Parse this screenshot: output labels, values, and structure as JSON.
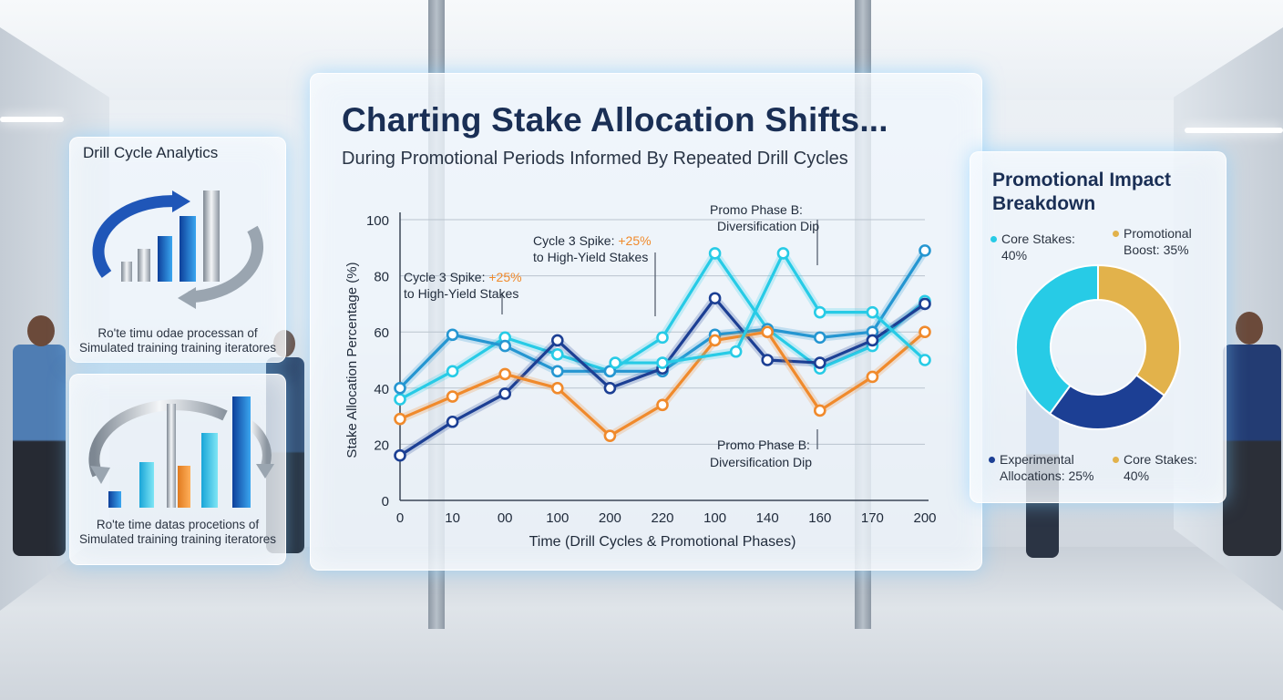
{
  "colors": {
    "dark_blue": "#1c3f94",
    "mid_blue": "#2596d1",
    "cyan": "#27cbe6",
    "orange": "#f08a2c",
    "gold": "#e2b24b"
  },
  "left_top_panel": {
    "title": "Drill Cycle Analytics",
    "caption_1": "Ro'te timu odae processan of",
    "caption_2": "Simulated training training iteratores",
    "icon": "cycle-bar-chart-icon"
  },
  "left_bottom_panel": {
    "caption_1": "Ro'te time datas procetions of",
    "caption_2": "Simulated training training iteratores",
    "icon": "cycle-bar-chart-icon"
  },
  "chart_data": [
    {
      "type": "line",
      "title": "Charting Stake Allocation Shifts...",
      "subtitle": "During Promotional Periods Informed By Repeated Drill Cycles",
      "xlabel": "Time (Drill Cycles & Promotional Phases)",
      "ylabel": "Stake Allocation Percentage (%)",
      "categories": [
        "0",
        "10",
        "00",
        "100",
        "200",
        "220",
        "100",
        "140",
        "160",
        "170",
        "200"
      ],
      "ylim": [
        0,
        100
      ],
      "yticks": [
        "0",
        "20",
        "40",
        "60",
        "80",
        "100"
      ],
      "grid": true,
      "series": [
        {
          "color": "#27cbe6",
          "points": [
            [
              0,
              36
            ],
            [
              1,
              46
            ],
            [
              2,
              58
            ],
            [
              3,
              52
            ],
            [
              4,
              46
            ],
            [
              5,
              58
            ],
            [
              6,
              88
            ],
            [
              7,
              61
            ],
            [
              8,
              47
            ],
            [
              9,
              55
            ],
            [
              10,
              71
            ]
          ]
        },
        {
          "color": "#2596d1",
          "points": [
            [
              0,
              40
            ],
            [
              1,
              59
            ],
            [
              2,
              55
            ],
            [
              3,
              46
            ],
            [
              4,
              46
            ],
            [
              5,
              46
            ],
            [
              6,
              59
            ],
            [
              7,
              61
            ],
            [
              8,
              58
            ],
            [
              9,
              60
            ],
            [
              10,
              89
            ]
          ]
        },
        {
          "color": "#1c3f94",
          "points": [
            [
              0,
              16
            ],
            [
              1,
              28
            ],
            [
              2,
              38
            ],
            [
              3,
              57
            ],
            [
              4,
              40
            ],
            [
              5,
              47
            ],
            [
              6,
              72
            ],
            [
              7,
              50
            ],
            [
              8,
              49
            ],
            [
              9,
              57
            ],
            [
              10,
              70
            ]
          ]
        },
        {
          "color": "#f08a2c",
          "points": [
            [
              0,
              29
            ],
            [
              1,
              37
            ],
            [
              2,
              45
            ],
            [
              3,
              40
            ],
            [
              4,
              23
            ],
            [
              5,
              34
            ],
            [
              6,
              57
            ],
            [
              7,
              60
            ],
            [
              8,
              32
            ],
            [
              9,
              44
            ],
            [
              10,
              60
            ]
          ]
        },
        {
          "color": "#27cbe6",
          "points": [
            [
              4.1,
              49
            ],
            [
              5,
              49
            ],
            [
              6.4,
              53
            ],
            [
              7.3,
              88
            ],
            [
              8,
              67
            ],
            [
              9,
              67
            ],
            [
              10,
              50
            ]
          ]
        }
      ],
      "annotations": [
        {
          "lines": [
            "Cycle 3 Spike: ",
            "+25%",
            "to High-Yield Stakes"
          ]
        },
        {
          "lines": [
            "Cycle 3 Spike: ",
            "+25%",
            "to High-Yield Stakes"
          ]
        },
        {
          "lines": [
            "Promo Phase B:",
            "Diversification Dip"
          ]
        },
        {
          "lines": [
            "Promo Phase B:",
            "Diversification Dip"
          ]
        }
      ]
    },
    {
      "type": "pie",
      "title": "Promotional Impact Breakdown",
      "slices": [
        {
          "label": "Promotional Boost: 35%",
          "value": 35,
          "color": "#e2b24b"
        },
        {
          "label": "Experimental Allocations: 25%",
          "value": 25,
          "color": "#1c3f94"
        },
        {
          "label": "Core Stakes: 40%",
          "value": 40,
          "color": "#27cbe6"
        }
      ],
      "legend": {
        "top_left": {
          "line1": "Core Stakes:",
          "line2": "40%"
        },
        "top_right": {
          "line1": "Promotional",
          "line2": "Boost: 35%"
        },
        "bottom_left": {
          "line1": "Experimental",
          "line2": "Allocations: 25%"
        },
        "bottom_right": {
          "line1": "Core Stakes:",
          "line2": "40%"
        }
      }
    }
  ]
}
